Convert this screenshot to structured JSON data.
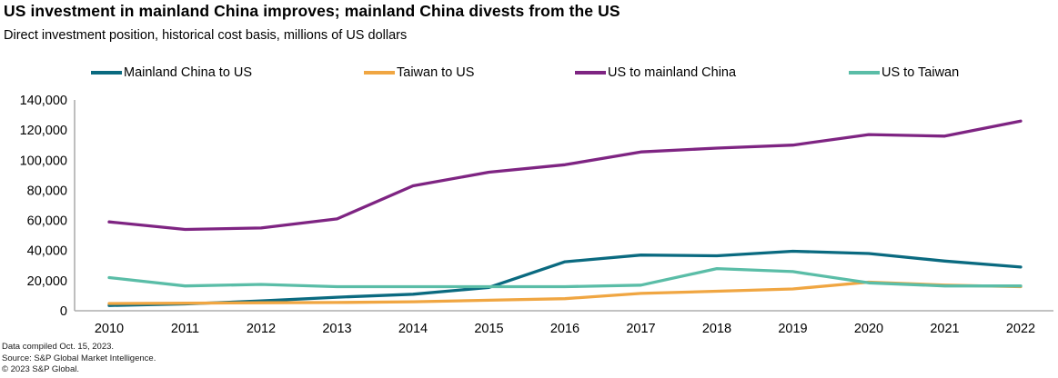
{
  "header": {
    "title": "US investment in mainland China improves; mainland China divests from the US",
    "subtitle": "Direct investment position, historical cost basis, millions of US dollars"
  },
  "legend": {
    "items": [
      {
        "label": "Mainland China to US",
        "color": "#0a6a80"
      },
      {
        "label": "Taiwan to US",
        "color": "#f0a642"
      },
      {
        "label": "US to mainland China",
        "color": "#7e2482"
      },
      {
        "label": "US to Taiwan",
        "color": "#5abda7"
      }
    ]
  },
  "chart_data": {
    "type": "line",
    "title": "US investment in mainland China improves; mainland China divests from the US",
    "subtitle": "Direct investment position, historical cost basis, millions of US dollars",
    "xlabel": "",
    "ylabel": "Millions of US dollars",
    "x": [
      2010,
      2011,
      2012,
      2013,
      2014,
      2015,
      2016,
      2017,
      2018,
      2019,
      2020,
      2021,
      2022
    ],
    "series": [
      {
        "name": "Mainland China to US",
        "color": "#0a6a80",
        "values": [
          3500,
          4500,
          6500,
          9000,
          11000,
          15500,
          32500,
          37000,
          36500,
          39500,
          38000,
          33000,
          29000
        ]
      },
      {
        "name": "Taiwan to US",
        "color": "#f0a642",
        "values": [
          4800,
          5000,
          5300,
          5500,
          6000,
          7000,
          8000,
          11500,
          13000,
          14500,
          19000,
          17000,
          16000
        ]
      },
      {
        "name": "US to mainland China",
        "color": "#7e2482",
        "values": [
          59000,
          54000,
          55000,
          61000,
          83000,
          92000,
          97000,
          105500,
          108000,
          110000,
          117000,
          116000,
          126000
        ]
      },
      {
        "name": "US to Taiwan",
        "color": "#5abda7",
        "values": [
          22000,
          16500,
          17500,
          16000,
          16000,
          16000,
          16000,
          17000,
          28000,
          26000,
          18500,
          16500,
          16500
        ]
      }
    ],
    "ylim": [
      0,
      140000
    ],
    "yticks": [
      0,
      20000,
      40000,
      60000,
      80000,
      100000,
      120000,
      140000
    ],
    "grid": false,
    "legend_position": "top",
    "axis_color": "#adadad"
  },
  "footer": {
    "lines": [
      "Data compiled Oct. 15, 2023.",
      "Source: S&P Global Market Intelligence.",
      "© 2023 S&P Global."
    ]
  }
}
